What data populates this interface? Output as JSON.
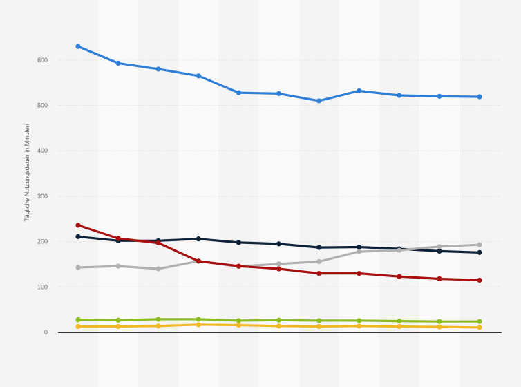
{
  "chart_data": {
    "type": "line",
    "title": "",
    "xlabel": "",
    "ylabel": "Tägliche Nutzungsdauer in Minuten",
    "ylim": [
      0,
      700
    ],
    "yticks": [
      0,
      100,
      200,
      300,
      400,
      500,
      600
    ],
    "grid": true,
    "legend": "none",
    "x_count": 11,
    "series": [
      {
        "color": "#2f7ed8",
        "values": [
          630,
          593,
          580,
          565,
          528,
          526,
          510,
          532,
          522,
          520,
          519
        ]
      },
      {
        "color": "#0d233a",
        "values": [
          211,
          202,
          202,
          206,
          198,
          195,
          187,
          188,
          184,
          179,
          176
        ]
      },
      {
        "color": "#b0b0b0",
        "values": [
          143,
          146,
          140,
          157,
          145,
          151,
          156,
          178,
          181,
          189,
          193
        ]
      },
      {
        "color": "#a80f0f",
        "values": [
          236,
          207,
          197,
          157,
          146,
          140,
          130,
          130,
          123,
          118,
          115
        ]
      },
      {
        "color": "#8bbc21",
        "values": [
          28,
          27,
          29,
          29,
          26,
          27,
          26,
          26,
          25,
          24,
          24
        ]
      },
      {
        "color": "#f0b825",
        "values": [
          13,
          13,
          14,
          17,
          16,
          14,
          13,
          14,
          13,
          12,
          11
        ]
      }
    ]
  }
}
